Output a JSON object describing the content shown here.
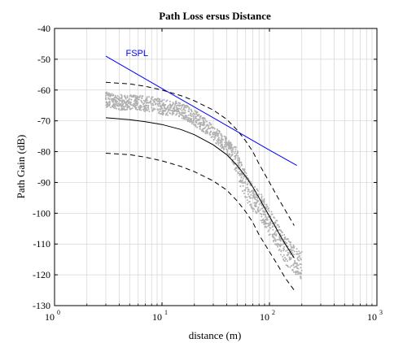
{
  "chart_data": {
    "type": "scatter",
    "title": "Path Loss ersus Distance",
    "xlabel": "distance (m)",
    "ylabel": "Path Gain (dB)",
    "xscale": "log",
    "xlim": [
      1,
      1000
    ],
    "ylim": [
      -130,
      -40
    ],
    "grid": true,
    "x_ticks": [
      {
        "base": "10",
        "exp": "0",
        "value": 1
      },
      {
        "base": "10",
        "exp": "1",
        "value": 10
      },
      {
        "base": "10",
        "exp": "2",
        "value": 100
      },
      {
        "base": "10",
        "exp": "3",
        "value": 1000
      }
    ],
    "y_ticks": [
      -40,
      -50,
      -60,
      -70,
      -80,
      -90,
      -100,
      -110,
      -120,
      -130
    ],
    "colors": {
      "measured": "#b0b0b0",
      "fspl": "#0000ff",
      "model": "#000000"
    },
    "annotations": [
      {
        "text": "FSPL",
        "x": 4.6,
        "y": -49,
        "color": "#0000ff"
      }
    ],
    "series": [
      {
        "name": "",
        "style": "points",
        "spread": 2.5,
        "points": [
          [
            3,
            -63
          ],
          [
            3.5,
            -63.5
          ],
          [
            4,
            -64
          ],
          [
            5,
            -64
          ],
          [
            6,
            -64
          ],
          [
            7,
            -64.5
          ],
          [
            8,
            -64.5
          ],
          [
            9,
            -65
          ],
          [
            10,
            -65.5
          ],
          [
            12,
            -66
          ],
          [
            14,
            -66
          ],
          [
            16,
            -67
          ],
          [
            18,
            -68
          ],
          [
            20,
            -69
          ],
          [
            22,
            -70
          ],
          [
            25,
            -71.5
          ],
          [
            28,
            -73
          ],
          [
            30,
            -74
          ],
          [
            35,
            -76
          ],
          [
            40,
            -78
          ],
          [
            45,
            -80
          ],
          [
            50,
            -83
          ],
          [
            55,
            -88
          ],
          [
            60,
            -91
          ],
          [
            65,
            -93
          ],
          [
            70,
            -95
          ],
          [
            80,
            -97
          ],
          [
            90,
            -100
          ],
          [
            100,
            -103
          ],
          [
            110,
            -105
          ],
          [
            120,
            -107
          ],
          [
            130,
            -110
          ],
          [
            140,
            -112
          ],
          [
            150,
            -113
          ],
          [
            160,
            -114
          ],
          [
            170,
            -115
          ],
          [
            180,
            -116
          ],
          [
            190,
            -117
          ],
          [
            200,
            -117
          ]
        ]
      },
      {
        "name": "",
        "style": "solid",
        "points": [
          [
            3,
            -49
          ],
          [
            10,
            -59.5
          ],
          [
            30,
            -69
          ],
          [
            100,
            -79.5
          ],
          [
            180,
            -84.5
          ]
        ]
      },
      {
        "name": "",
        "style": "solid",
        "points": [
          [
            3,
            -69
          ],
          [
            5,
            -69.6
          ],
          [
            7,
            -70.3
          ],
          [
            10,
            -71.2
          ],
          [
            15,
            -72.8
          ],
          [
            20,
            -74.5
          ],
          [
            30,
            -77.8
          ],
          [
            40,
            -81
          ],
          [
            50,
            -84.5
          ],
          [
            60,
            -88
          ],
          [
            70,
            -91.5
          ],
          [
            80,
            -95
          ],
          [
            100,
            -101
          ],
          [
            120,
            -106
          ],
          [
            140,
            -110
          ],
          [
            170,
            -114.5
          ]
        ]
      },
      {
        "name": "",
        "style": "dashed",
        "points": [
          [
            3,
            -57.5
          ],
          [
            5,
            -58
          ],
          [
            7,
            -58.8
          ],
          [
            10,
            -60
          ],
          [
            15,
            -61.8
          ],
          [
            20,
            -63.5
          ],
          [
            30,
            -66.5
          ],
          [
            40,
            -69.5
          ],
          [
            50,
            -73
          ],
          [
            60,
            -76.5
          ],
          [
            70,
            -80
          ],
          [
            80,
            -84
          ],
          [
            100,
            -90
          ],
          [
            120,
            -95
          ],
          [
            140,
            -99
          ],
          [
            170,
            -104
          ]
        ]
      },
      {
        "name": "",
        "style": "dashed",
        "points": [
          [
            3,
            -80.5
          ],
          [
            5,
            -81
          ],
          [
            7,
            -81.8
          ],
          [
            10,
            -83
          ],
          [
            15,
            -84.8
          ],
          [
            20,
            -86.5
          ],
          [
            30,
            -89.5
          ],
          [
            40,
            -92.5
          ],
          [
            50,
            -96
          ],
          [
            60,
            -99.5
          ],
          [
            70,
            -103
          ],
          [
            80,
            -107
          ],
          [
            100,
            -112.5
          ],
          [
            120,
            -117
          ],
          [
            140,
            -121
          ],
          [
            170,
            -125
          ]
        ]
      }
    ]
  }
}
